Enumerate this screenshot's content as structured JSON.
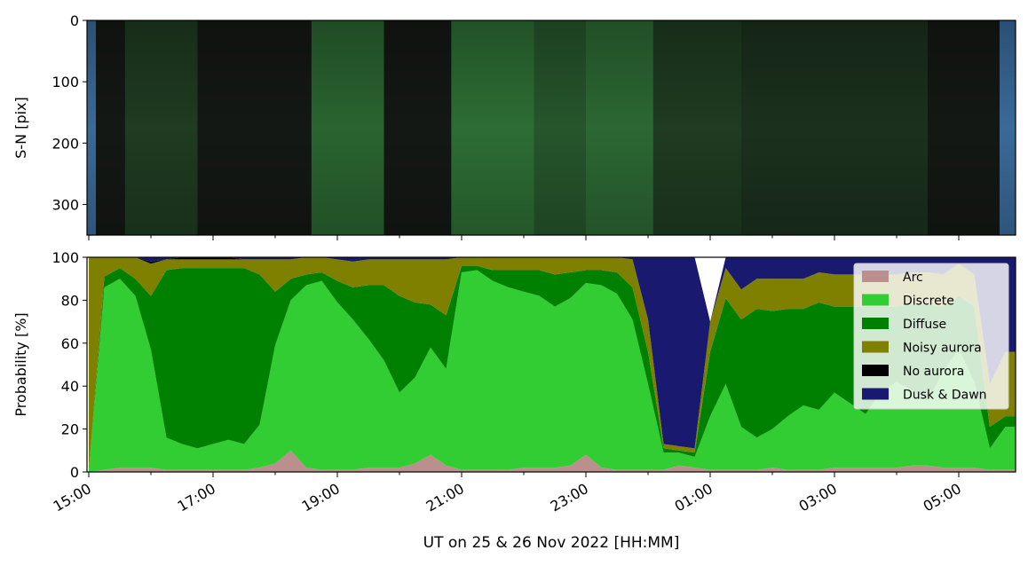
{
  "chart_data": [
    {
      "type": "heatmap",
      "description_source": "keogram image panel",
      "ylabel": "S-N [pix]",
      "yticks": [
        0,
        100,
        200,
        300
      ],
      "ylim": [
        350,
        0
      ],
      "xlim": [
        "15:00",
        "05:55"
      ],
      "green_bands": [
        {
          "start": "15:35",
          "end": "16:45",
          "level": 0.35
        },
        {
          "start": "18:35",
          "end": "19:45",
          "level": 0.75
        },
        {
          "start": "20:50",
          "end": "22:10",
          "level": 0.85
        },
        {
          "start": "22:10",
          "end": "23:00",
          "level": 0.6
        },
        {
          "start": "23:00",
          "end": "00:05",
          "level": 0.8
        },
        {
          "start": "00:05",
          "end": "01:30",
          "level": 0.35
        },
        {
          "start": "01:30",
          "end": "04:30",
          "level": 0.25
        }
      ],
      "colors": {
        "dusk": "#3a6a9a",
        "dark": "#141814",
        "green": "#4cd05a"
      }
    },
    {
      "type": "area",
      "stacked": true,
      "ylabel": "Probability [%]",
      "xlabel": "UT on 25 & 26 Nov 2022 [HH:MM]",
      "ylim": [
        0,
        100
      ],
      "yticks": [
        0,
        20,
        40,
        60,
        80,
        100
      ],
      "xticks": [
        "15:00",
        "17:00",
        "19:00",
        "21:00",
        "23:00",
        "01:00",
        "03:00",
        "05:00"
      ],
      "x_unit": "UT time",
      "x": [
        "15:00",
        "15:15",
        "15:30",
        "15:45",
        "16:00",
        "16:15",
        "16:30",
        "16:45",
        "17:00",
        "17:15",
        "17:30",
        "17:45",
        "18:00",
        "18:15",
        "18:30",
        "18:45",
        "19:00",
        "19:15",
        "19:30",
        "19:45",
        "20:00",
        "20:15",
        "20:30",
        "20:45",
        "21:00",
        "21:15",
        "21:30",
        "21:45",
        "22:00",
        "22:15",
        "22:30",
        "22:45",
        "23:00",
        "23:15",
        "23:30",
        "23:45",
        "00:00",
        "00:15",
        "00:30",
        "00:45",
        "01:00",
        "01:15",
        "01:30",
        "01:45",
        "02:00",
        "02:15",
        "02:30",
        "02:45",
        "03:00",
        "03:15",
        "03:30",
        "03:45",
        "04:00",
        "04:15",
        "04:30",
        "04:45",
        "05:00",
        "05:15",
        "05:30",
        "05:45"
      ],
      "series": [
        {
          "name": "Arc",
          "color": "#bc8f8f",
          "values": [
            0,
            1,
            2,
            2,
            2,
            1,
            1,
            1,
            1,
            1,
            1,
            2,
            4,
            10,
            2,
            1,
            1,
            1,
            2,
            2,
            2,
            4,
            8,
            3,
            1,
            1,
            1,
            1,
            2,
            2,
            2,
            3,
            8,
            2,
            1,
            1,
            1,
            1,
            3,
            2,
            1,
            1,
            1,
            1,
            2,
            1,
            1,
            1,
            2,
            2,
            2,
            2,
            2,
            3,
            3,
            2,
            2,
            2,
            1,
            1
          ]
        },
        {
          "name": "Discrete",
          "color": "#32cd32",
          "values": [
            0,
            85,
            88,
            80,
            55,
            15,
            12,
            10,
            12,
            14,
            12,
            20,
            55,
            70,
            85,
            88,
            78,
            70,
            60,
            50,
            35,
            40,
            50,
            45,
            92,
            93,
            88,
            85,
            82,
            80,
            75,
            78,
            80,
            85,
            82,
            70,
            40,
            8,
            6,
            5,
            25,
            40,
            20,
            15,
            18,
            25,
            30,
            28,
            35,
            30,
            25,
            35,
            40,
            35,
            30,
            45,
            55,
            40,
            10,
            20
          ]
        },
        {
          "name": "Diffuse",
          "color": "#008000",
          "values": [
            0,
            5,
            5,
            8,
            25,
            78,
            82,
            84,
            82,
            80,
            82,
            70,
            25,
            10,
            5,
            4,
            10,
            15,
            25,
            35,
            45,
            35,
            20,
            25,
            3,
            2,
            5,
            8,
            10,
            12,
            15,
            12,
            6,
            7,
            10,
            15,
            15,
            2,
            1,
            2,
            30,
            40,
            50,
            60,
            55,
            50,
            45,
            50,
            40,
            45,
            50,
            40,
            35,
            40,
            45,
            30,
            25,
            35,
            10,
            5
          ]
        },
        {
          "name": "Noisy aurora",
          "color": "#808000",
          "values": [
            100,
            9,
            5,
            10,
            15,
            5,
            4,
            4,
            4,
            4,
            4,
            7,
            15,
            9,
            8,
            7,
            10,
            12,
            12,
            12,
            17,
            20,
            21,
            26,
            4,
            4,
            6,
            6,
            6,
            6,
            8,
            7,
            6,
            6,
            7,
            13,
            15,
            2,
            2,
            2,
            14,
            14,
            14,
            14,
            15,
            14,
            14,
            14,
            15,
            15,
            15,
            15,
            15,
            15,
            15,
            15,
            15,
            15,
            20,
            30
          ]
        },
        {
          "name": "No aurora",
          "color": "#000000",
          "values": [
            0,
            0,
            0,
            0,
            1,
            0,
            1,
            1,
            1,
            1,
            0,
            0,
            0,
            0,
            0,
            0,
            0,
            0,
            0,
            0,
            0,
            0,
            0,
            0,
            0,
            0,
            0,
            0,
            0,
            0,
            0,
            0,
            0,
            0,
            0,
            0,
            0,
            0,
            0,
            0,
            0,
            0,
            0,
            0,
            0,
            0,
            0,
            0,
            0,
            0,
            0,
            0,
            0,
            0,
            0,
            0,
            0,
            0,
            0,
            0
          ]
        },
        {
          "name": "Dusk & Dawn",
          "color": "#191970",
          "values": [
            0,
            0,
            0,
            0,
            2,
            1,
            0,
            0,
            0,
            0,
            1,
            1,
            1,
            1,
            0,
            0,
            1,
            2,
            1,
            1,
            1,
            1,
            1,
            1,
            0,
            0,
            0,
            0,
            0,
            0,
            0,
            0,
            0,
            0,
            0,
            1,
            29,
            88,
            88,
            89,
            0,
            5,
            15,
            10,
            10,
            10,
            10,
            7,
            8,
            8,
            8,
            8,
            8,
            7,
            7,
            8,
            3,
            8,
            59,
            44
          ]
        }
      ],
      "legend_position": "top-right"
    }
  ]
}
